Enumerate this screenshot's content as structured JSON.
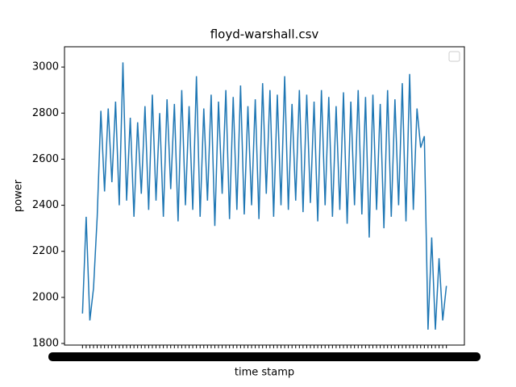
{
  "chart_data": {
    "type": "line",
    "title": "floyd-warshall.csv",
    "x_label": "time stamp",
    "y_label": "power",
    "categories": [
      null,
      null,
      null,
      null,
      null,
      null,
      null,
      null,
      null,
      null,
      null,
      null,
      null,
      null,
      null,
      null,
      null,
      null,
      null,
      null,
      null,
      null,
      null,
      null,
      null,
      null,
      null,
      null,
      null,
      null,
      null,
      null,
      null,
      null,
      null,
      null,
      null,
      null,
      null,
      null,
      null,
      null,
      null,
      null,
      null,
      null,
      null,
      null,
      null,
      null,
      null,
      null,
      null,
      null,
      null,
      null,
      null,
      null,
      null,
      null,
      null,
      null,
      null,
      null,
      null,
      null,
      null,
      null,
      null,
      null,
      null,
      null,
      null,
      null,
      null,
      null,
      null,
      null,
      null,
      null,
      null,
      null,
      null,
      null,
      null,
      null,
      null,
      null,
      null,
      null,
      null,
      null,
      null,
      null,
      null,
      null,
      null,
      null,
      null,
      null
    ],
    "values": [
      1930,
      2350,
      1900,
      2040,
      2350,
      2810,
      2460,
      2820,
      2500,
      2850,
      2400,
      3020,
      2420,
      2780,
      2350,
      2760,
      2450,
      2830,
      2380,
      2880,
      2420,
      2800,
      2350,
      2860,
      2470,
      2840,
      2330,
      2900,
      2400,
      2830,
      2380,
      2960,
      2350,
      2820,
      2420,
      2880,
      2310,
      2850,
      2450,
      2900,
      2340,
      2870,
      2380,
      2920,
      2360,
      2830,
      2400,
      2860,
      2340,
      2930,
      2450,
      2900,
      2350,
      2880,
      2400,
      2960,
      2380,
      2840,
      2420,
      2900,
      2370,
      2880,
      2410,
      2850,
      2330,
      2900,
      2400,
      2870,
      2350,
      2830,
      2380,
      2890,
      2320,
      2850,
      2400,
      2900,
      2360,
      2870,
      2260,
      2880,
      2380,
      2840,
      2300,
      2900,
      2350,
      2860,
      2400,
      2930,
      2330,
      2970,
      2380,
      2820,
      2650,
      2700,
      1860,
      2260,
      1860,
      2170,
      1900,
      2050
    ],
    "color": "#1f77b4",
    "ylim": [
      1793,
      3088
    ],
    "yticks": [
      1800,
      2000,
      2200,
      2400,
      2600,
      2800,
      3000
    ]
  }
}
